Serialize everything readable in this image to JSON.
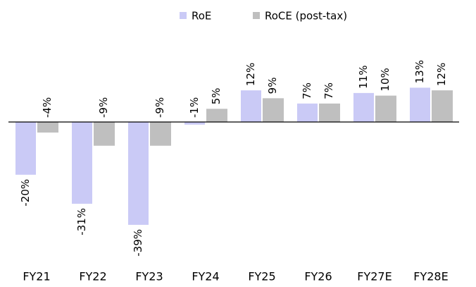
{
  "chart_data": {
    "type": "bar",
    "categories": [
      "FY21",
      "FY22",
      "FY23",
      "FY24",
      "FY25",
      "FY26",
      "FY27E",
      "FY28E"
    ],
    "series": [
      {
        "name": "RoE",
        "color": "#cacaf6",
        "values": [
          -20,
          -31,
          -39,
          -1,
          12,
          7,
          11,
          13
        ],
        "value_labels": [
          "-20%",
          "-31%",
          "-39%",
          "-1%",
          "12%",
          "7%",
          "11%",
          "13%"
        ]
      },
      {
        "name": "RoCE (post-tax)",
        "color": "#bfbfbf",
        "values": [
          -4,
          -9,
          -9,
          5,
          9,
          7,
          10,
          12
        ],
        "value_labels": [
          "-4%",
          "-9%",
          "-9%",
          "5%",
          "9%",
          "7%",
          "10%",
          "12%"
        ]
      }
    ],
    "legend": "top"
  }
}
